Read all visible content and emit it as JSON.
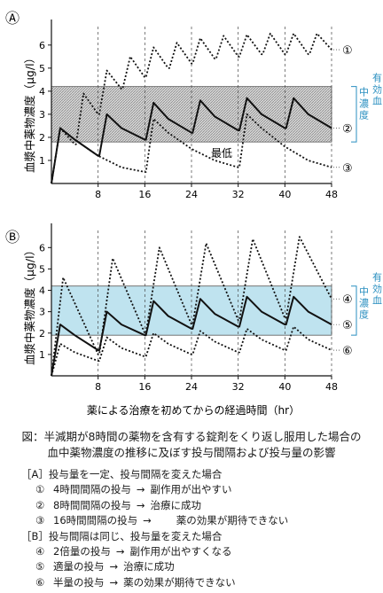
{
  "chart_data": [
    {
      "type": "line",
      "panel_label": "Ⓐ",
      "ylabel": "血漿中薬物濃度（μg/l）",
      "xlabel": "",
      "x_ticks": [
        "8",
        "16",
        "24",
        "32",
        "40",
        "48"
      ],
      "y_ticks": [
        "1",
        "2",
        "3",
        "4",
        "5",
        "6"
      ],
      "xlim": [
        0,
        48
      ],
      "ylim": [
        0,
        6.8
      ],
      "therapeutic_band": [
        1.8,
        4.2
      ],
      "band_label": "有効血中濃度",
      "band_top_label": "最高",
      "band_bottom_label": "最低",
      "band_style": "hatched",
      "series": [
        {
          "name": "①",
          "style": "dotted",
          "x": [
            0,
            1.5,
            4,
            4.2,
            5.5,
            8,
            8.2,
            9.5,
            12,
            12.2,
            13.5,
            16,
            16.2,
            17.5,
            20,
            20.2,
            21.5,
            24,
            24.2,
            25.5,
            28,
            28.2,
            29.5,
            32,
            32.2,
            33.5,
            36,
            36.2,
            37.5,
            40,
            40.2,
            41.5,
            44,
            44.2,
            45.5,
            48
          ],
          "y": [
            0,
            2.4,
            1.7,
            1.7,
            3.9,
            3.0,
            3.0,
            4.9,
            4.1,
            4.1,
            5.5,
            4.6,
            4.6,
            5.9,
            5.0,
            5.0,
            6.1,
            5.2,
            5.2,
            6.3,
            5.4,
            5.4,
            6.4,
            5.5,
            5.5,
            6.45,
            5.6,
            5.6,
            6.5,
            5.6,
            5.6,
            6.5,
            5.6,
            5.6,
            6.5,
            5.8
          ]
        },
        {
          "name": "②",
          "style": "solid",
          "x": [
            0,
            1.5,
            4,
            8,
            8.2,
            9.5,
            12,
            16,
            16.2,
            17.5,
            20,
            24,
            24.2,
            25.5,
            28,
            32,
            32.2,
            33.5,
            36,
            40,
            40.2,
            41.5,
            44,
            48
          ],
          "y": [
            0,
            2.4,
            1.9,
            1.2,
            1.2,
            3.0,
            2.4,
            1.9,
            1.9,
            3.5,
            2.8,
            2.2,
            2.2,
            3.6,
            2.9,
            2.3,
            2.3,
            3.7,
            3.0,
            2.4,
            2.4,
            3.7,
            3.0,
            2.4
          ]
        },
        {
          "name": "③",
          "style": "dotted",
          "x": [
            0,
            1.5,
            4,
            8,
            12,
            16,
            16.2,
            17.5,
            20,
            24,
            28,
            32,
            32.2,
            33.5,
            36,
            40,
            44,
            48
          ],
          "y": [
            0,
            2.4,
            1.9,
            1.2,
            0.7,
            0.5,
            0.5,
            2.8,
            2.2,
            1.5,
            1.0,
            0.7,
            0.7,
            3.0,
            2.4,
            1.6,
            1.0,
            0.7
          ]
        }
      ]
    },
    {
      "type": "line",
      "panel_label": "Ⓑ",
      "ylabel": "血漿中薬物濃度（μg/l）",
      "xlabel": "薬による治療を初めてからの経過時間（hr）",
      "x_ticks": [
        "8",
        "16",
        "24",
        "32",
        "40",
        "48"
      ],
      "y_ticks": [
        "1",
        "2",
        "3",
        "4",
        "5",
        "6"
      ],
      "xlim": [
        0,
        48
      ],
      "ylim": [
        0,
        6.8
      ],
      "therapeutic_band": [
        1.9,
        4.2
      ],
      "band_label": "有効血中濃度",
      "band_style": "filled",
      "band_color": "#bfe3ef",
      "series": [
        {
          "name": "④",
          "style": "dotted",
          "x": [
            0,
            2,
            8,
            8.2,
            10.5,
            16,
            16.2,
            18.5,
            24,
            24.2,
            26.5,
            32,
            32.2,
            34.5,
            40,
            40.2,
            42.5,
            48
          ],
          "y": [
            0,
            4.6,
            1.0,
            1.0,
            5.5,
            2.0,
            2.0,
            6.0,
            2.4,
            2.4,
            6.2,
            2.6,
            2.6,
            6.4,
            2.7,
            2.7,
            6.5,
            3.6
          ]
        },
        {
          "name": "⑤",
          "style": "solid",
          "x": [
            0,
            1.5,
            4,
            8,
            8.2,
            9.5,
            12,
            16,
            16.2,
            17.5,
            20,
            24,
            24.2,
            25.5,
            28,
            32,
            32.2,
            33.5,
            36,
            40,
            40.2,
            41.5,
            44,
            48
          ],
          "y": [
            0,
            2.4,
            1.9,
            1.2,
            1.2,
            3.0,
            2.4,
            1.9,
            1.9,
            3.5,
            2.8,
            2.2,
            2.2,
            3.6,
            2.9,
            2.3,
            2.3,
            3.7,
            3.0,
            2.4,
            2.4,
            3.7,
            3.0,
            2.4
          ]
        },
        {
          "name": "⑥",
          "style": "dotted",
          "x": [
            0,
            1.5,
            4,
            8,
            8.2,
            9.5,
            12,
            16,
            16.2,
            17.5,
            20,
            24,
            24.2,
            25.5,
            28,
            32,
            32.2,
            33.5,
            36,
            40,
            40.2,
            41.5,
            44,
            48
          ],
          "y": [
            0,
            1.5,
            1.1,
            0.7,
            0.7,
            1.8,
            1.3,
            0.9,
            0.9,
            2.0,
            1.5,
            1.0,
            1.0,
            2.1,
            1.6,
            1.1,
            1.1,
            2.2,
            1.7,
            1.2,
            1.2,
            2.3,
            1.7,
            1.2
          ]
        }
      ]
    }
  ],
  "caption": {
    "line1": "図：半減期が8時間の薬物を含有する錠剤をくり返し服用した場合の",
    "line2": "血中薬物濃度の推移に及ぼす投与間隔および投与量の影響"
  },
  "notes": {
    "a_head": "［A］投与量を一定、投与間隔を変えた場合",
    "a_items": [
      {
        "num": "①",
        "text": "4時間間隔の投与",
        "arrow": "→",
        "result": "副作用が出やすい"
      },
      {
        "num": "②",
        "text": "8時間間隔の投与",
        "arrow": "→",
        "result": "治療に成功"
      },
      {
        "num": "③",
        "text": "16時間間隔の投与",
        "arrow": "→",
        "result": "薬の効果が期待できない"
      }
    ],
    "b_head": "［B］投与間隔は同じ、投与量を変えた場合",
    "b_items": [
      {
        "num": "④",
        "text": "2倍量の投与",
        "arrow": "→",
        "result": "副作用が出やすくなる"
      },
      {
        "num": "⑤",
        "text": "適量の投与",
        "arrow": "→",
        "result": "治療に成功"
      },
      {
        "num": "⑥",
        "text": "半量の投与",
        "arrow": "→",
        "result": "薬の効果が期待できない"
      }
    ]
  }
}
